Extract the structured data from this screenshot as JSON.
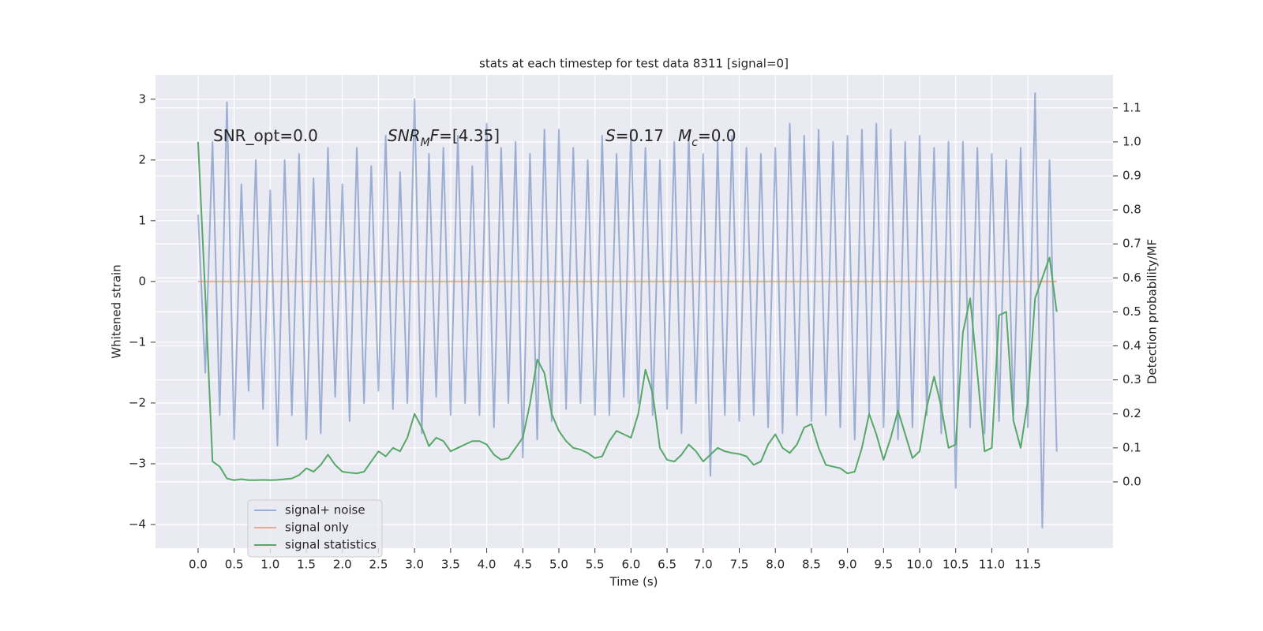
{
  "chart_data": {
    "type": "line",
    "title": "stats at each timestep for test data 8311 [signal=0]",
    "xlabel": "Time (s)",
    "ylabel": "Whitened strain",
    "y2label": "Detection probability/MF",
    "xlim": [
      -0.59,
      12.68
    ],
    "ylim": [
      -4.39,
      3.4
    ],
    "y2lim": [
      -0.195,
      1.197
    ],
    "xticks": [
      {
        "value": 0,
        "label": "0.0"
      },
      0.5,
      {
        "value": 1,
        "label": "1.0"
      },
      1.5,
      {
        "value": 2,
        "label": "2.0"
      },
      2.5,
      {
        "value": 3,
        "label": "3.0"
      },
      3.5,
      {
        "value": 4,
        "label": "4.0"
      },
      4.5,
      {
        "value": 5,
        "label": "5.0"
      },
      5.5,
      {
        "value": 6,
        "label": "6.0"
      },
      6.5,
      {
        "value": 7,
        "label": "7.0"
      },
      7.5,
      {
        "value": 8,
        "label": "8.0"
      },
      8.5,
      {
        "value": 9,
        "label": "9.0"
      },
      9.5,
      {
        "value": 10,
        "label": "10.0"
      },
      10.5,
      {
        "value": 11,
        "label": "11.0"
      },
      11.5
    ],
    "yticks": [
      {
        "value": -4,
        "label": "−4"
      },
      {
        "value": -3,
        "label": "−3"
      },
      {
        "value": -2,
        "label": "−2"
      },
      {
        "value": -1,
        "label": "−1"
      },
      0,
      1,
      2,
      3
    ],
    "y2ticks": [
      {
        "value": 0,
        "label": "0.0"
      },
      0.1,
      0.2,
      0.3,
      0.4,
      0.5,
      0.6,
      0.7,
      0.8,
      0.9,
      {
        "value": 1,
        "label": "1.0"
      },
      1.1
    ],
    "grid": true,
    "legend": "lower left",
    "annotations": [
      {
        "parts": [
          {
            "text": "SNR_opt=0.0"
          }
        ]
      },
      {
        "parts": [
          {
            "text": "SNR",
            "math": true
          },
          {
            "text": "M",
            "math": true,
            "sub": true
          },
          {
            "text": "F",
            "math": true
          },
          {
            "text": "=[4.35]"
          }
        ]
      },
      {
        "parts": [
          {
            "text": "S",
            "math": true
          },
          {
            "text": "=0.17"
          }
        ]
      },
      {
        "parts": [
          {
            "text": "M",
            "math": true
          },
          {
            "text": "c",
            "math": true,
            "sub": true
          },
          {
            "text": "=0.0"
          }
        ]
      }
    ],
    "x": [
      0,
      0.1,
      0.2,
      0.3,
      0.4,
      0.5,
      0.6,
      0.7,
      0.8,
      0.9,
      1,
      1.1,
      1.2,
      1.3,
      1.4,
      1.5,
      1.6,
      1.7,
      1.8,
      1.9,
      2,
      2.1,
      2.2,
      2.3,
      2.4,
      2.5,
      2.6,
      2.7,
      2.8,
      2.9,
      3,
      3.1,
      3.2,
      3.3,
      3.4,
      3.5,
      3.6,
      3.7,
      3.8,
      3.9,
      4,
      4.1,
      4.2,
      4.3,
      4.4,
      4.5,
      4.6,
      4.7,
      4.8,
      4.9,
      5,
      5.1,
      5.2,
      5.3,
      5.4,
      5.5,
      5.6,
      5.7,
      5.8,
      5.9,
      6,
      6.1,
      6.2,
      6.3,
      6.4,
      6.5,
      6.6,
      6.7,
      6.8,
      6.9,
      7,
      7.1,
      7.2,
      7.3,
      7.4,
      7.5,
      7.6,
      7.7,
      7.8,
      7.9,
      8,
      8.1,
      8.2,
      8.3,
      8.4,
      8.5,
      8.6,
      8.7,
      8.8,
      8.9,
      9,
      9.1,
      9.2,
      9.3,
      9.4,
      9.5,
      9.6,
      9.7,
      9.8,
      9.9,
      10,
      10.1,
      10.2,
      10.3,
      10.4,
      10.5,
      10.6,
      10.7,
      10.8,
      10.9,
      11,
      11.1,
      11.2,
      11.3,
      11.4,
      11.5,
      11.6,
      11.7,
      11.8,
      11.9
    ],
    "series": [
      {
        "name": "signal+ noise",
        "color": "#4c72b0",
        "opacity": 0.5,
        "values": [
          1.1,
          -1.5,
          2.3,
          -2.2,
          2.95,
          -2.6,
          1.6,
          -1.8,
          2.0,
          -2.1,
          1.5,
          -2.7,
          2.0,
          -2.2,
          2.1,
          -2.6,
          1.7,
          -2.5,
          2.2,
          -1.9,
          1.6,
          -2.3,
          2.2,
          -2.0,
          1.9,
          -1.8,
          2.4,
          -2.1,
          1.8,
          -2.0,
          3.0,
          -2.5,
          2.1,
          -1.9,
          2.2,
          -2.2,
          2.4,
          -2.0,
          1.9,
          -2.2,
          2.6,
          -2.4,
          2.2,
          -2.0,
          2.3,
          -2.9,
          2.1,
          -2.6,
          2.5,
          -2.3,
          2.5,
          -2.1,
          2.2,
          -2.0,
          2.0,
          -2.2,
          2.4,
          -2.2,
          2.1,
          -1.9,
          2.5,
          -2.0,
          2.2,
          -2.2,
          2.0,
          -2.1,
          2.3,
          -2.5,
          2.4,
          -2.0,
          2.1,
          -3.2,
          2.3,
          -2.2,
          2.4,
          -2.3,
          2.2,
          -2.2,
          2.1,
          -2.4,
          2.2,
          -2.5,
          2.6,
          -2.2,
          2.4,
          -2.3,
          2.5,
          -2.2,
          2.3,
          -2.4,
          2.4,
          -2.6,
          2.5,
          -2.2,
          2.6,
          -2.4,
          2.5,
          -2.6,
          2.3,
          -2.4,
          2.4,
          -2.2,
          2.2,
          -2.5,
          2.3,
          -3.4,
          2.3,
          -2.4,
          2.2,
          -2.5,
          2.1,
          -2.3,
          2.0,
          -2.2,
          2.2,
          -2.4,
          3.1,
          -4.05,
          2.0,
          -2.8
        ]
      },
      {
        "name": "signal only",
        "color": "#dd8452",
        "opacity": 0.6,
        "values": [
          0,
          0,
          0,
          0,
          0,
          0,
          0,
          0,
          0,
          0,
          0,
          0,
          0,
          0,
          0,
          0,
          0,
          0,
          0,
          0,
          0,
          0,
          0,
          0,
          0,
          0,
          0,
          0,
          0,
          0,
          0,
          0,
          0,
          0,
          0,
          0,
          0,
          0,
          0,
          0,
          0,
          0,
          0,
          0,
          0,
          0,
          0,
          0,
          0,
          0,
          0,
          0,
          0,
          0,
          0,
          0,
          0,
          0,
          0,
          0,
          0,
          0,
          0,
          0,
          0,
          0,
          0,
          0,
          0,
          0,
          0,
          0,
          0,
          0,
          0,
          0,
          0,
          0,
          0,
          0,
          0,
          0,
          0,
          0,
          0,
          0,
          0,
          0,
          0,
          0,
          0,
          0,
          0,
          0,
          0,
          0,
          0,
          0,
          0,
          0,
          0,
          0,
          0,
          0,
          0,
          0,
          0,
          0,
          0,
          0,
          0,
          0,
          0,
          0,
          0,
          0,
          0,
          0,
          0,
          0
        ]
      },
      {
        "name": "signal statistics",
        "color": "#55a868",
        "opacity": 1,
        "axis": "y2",
        "values": [
          1.0,
          0.55,
          0.06,
          0.045,
          0.01,
          0.005,
          0.008,
          0.005,
          0.005,
          0.006,
          0.005,
          0.006,
          0.008,
          0.01,
          0.02,
          0.04,
          0.03,
          0.05,
          0.08,
          0.05,
          0.03,
          0.027,
          0.025,
          0.03,
          0.06,
          0.09,
          0.075,
          0.1,
          0.09,
          0.13,
          0.2,
          0.16,
          0.105,
          0.13,
          0.12,
          0.09,
          0.1,
          0.11,
          0.12,
          0.12,
          0.11,
          0.08,
          0.065,
          0.07,
          0.1,
          0.13,
          0.23,
          0.36,
          0.32,
          0.2,
          0.15,
          0.12,
          0.1,
          0.095,
          0.085,
          0.07,
          0.075,
          0.12,
          0.15,
          0.14,
          0.13,
          0.2,
          0.33,
          0.26,
          0.1,
          0.065,
          0.06,
          0.08,
          0.11,
          0.09,
          0.06,
          0.08,
          0.1,
          0.09,
          0.085,
          0.082,
          0.075,
          0.05,
          0.06,
          0.11,
          0.14,
          0.1,
          0.085,
          0.11,
          0.16,
          0.17,
          0.1,
          0.05,
          0.045,
          0.04,
          0.025,
          0.03,
          0.1,
          0.2,
          0.14,
          0.065,
          0.13,
          0.21,
          0.14,
          0.07,
          0.09,
          0.22,
          0.31,
          0.22,
          0.1,
          0.11,
          0.44,
          0.54,
          0.32,
          0.09,
          0.1,
          0.49,
          0.5,
          0.18,
          0.1,
          0.24,
          0.54,
          0.6,
          0.66,
          0.5
        ]
      }
    ]
  }
}
